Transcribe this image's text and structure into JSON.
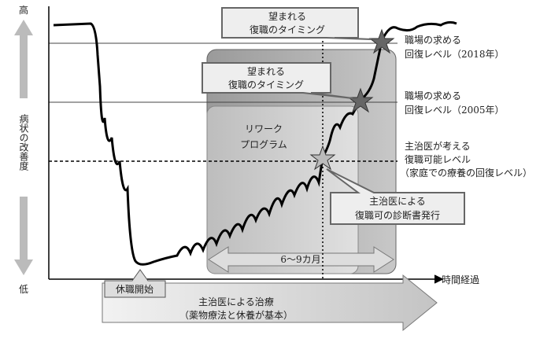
{
  "axis": {
    "high": "高",
    "y_label": "病状の改善度",
    "low": "低",
    "x_label": "時間経過"
  },
  "timing_top": [
    "望まれる",
    "復職のタイミング"
  ],
  "timing_mid": [
    "望まれる",
    "復職のタイミング"
  ],
  "rework": [
    "リワーク",
    "プログラム"
  ],
  "levels": [
    [
      "職場の求める",
      "回復レベル（2018年）"
    ],
    [
      "職場の求める",
      "回復レベル（2005年）"
    ],
    [
      "主治医が考える",
      "復職可能レベル",
      "（家庭での療養の回復レベル）"
    ]
  ],
  "diagnosis": [
    "主治医による",
    "復職可の診断書発行"
  ],
  "duration": "6～9カ月",
  "leave_start": "休職開始",
  "treatment": [
    "主治医による治療",
    "（薬物療法と休養が基本）"
  ]
}
